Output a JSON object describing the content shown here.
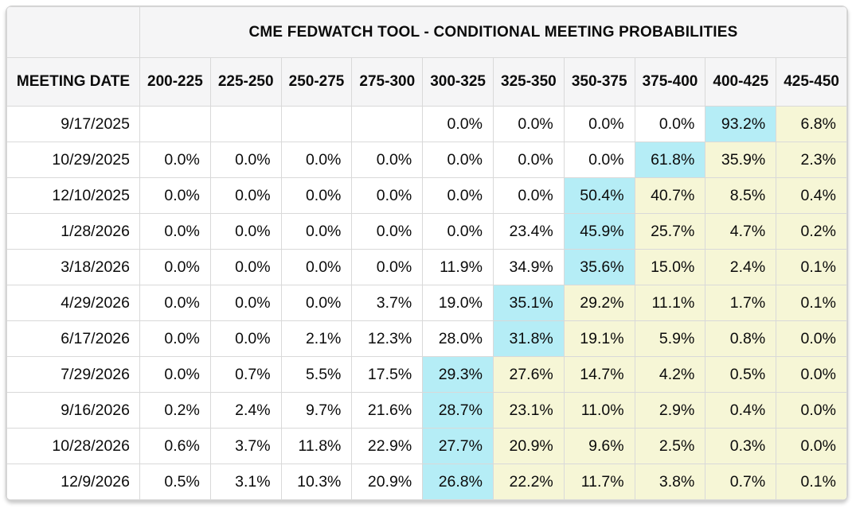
{
  "table": {
    "title": "CME FEDWATCH TOOL - CONDITIONAL MEETING PROBABILITIES",
    "date_column_header": "MEETING DATE",
    "rate_headers": [
      "200-225",
      "225-250",
      "250-275",
      "275-300",
      "300-325",
      "325-350",
      "350-375",
      "375-400",
      "400-425",
      "425-450"
    ],
    "rows": [
      {
        "date": "9/17/2025",
        "values": [
          "",
          "",
          "",
          "",
          "0.0%",
          "0.0%",
          "0.0%",
          "0.0%",
          "93.2%",
          "6.8%"
        ],
        "styles": [
          "w",
          "w",
          "w",
          "w",
          "w",
          "w",
          "w",
          "w",
          "c",
          "y"
        ]
      },
      {
        "date": "10/29/2025",
        "values": [
          "0.0%",
          "0.0%",
          "0.0%",
          "0.0%",
          "0.0%",
          "0.0%",
          "0.0%",
          "61.8%",
          "35.9%",
          "2.3%"
        ],
        "styles": [
          "w",
          "w",
          "w",
          "w",
          "w",
          "w",
          "w",
          "c",
          "y",
          "y"
        ]
      },
      {
        "date": "12/10/2025",
        "values": [
          "0.0%",
          "0.0%",
          "0.0%",
          "0.0%",
          "0.0%",
          "0.0%",
          "50.4%",
          "40.7%",
          "8.5%",
          "0.4%"
        ],
        "styles": [
          "w",
          "w",
          "w",
          "w",
          "w",
          "w",
          "c",
          "y",
          "y",
          "y"
        ]
      },
      {
        "date": "1/28/2026",
        "values": [
          "0.0%",
          "0.0%",
          "0.0%",
          "0.0%",
          "0.0%",
          "23.4%",
          "45.9%",
          "25.7%",
          "4.7%",
          "0.2%"
        ],
        "styles": [
          "w",
          "w",
          "w",
          "w",
          "w",
          "w",
          "c",
          "y",
          "y",
          "y"
        ]
      },
      {
        "date": "3/18/2026",
        "values": [
          "0.0%",
          "0.0%",
          "0.0%",
          "0.0%",
          "11.9%",
          "34.9%",
          "35.6%",
          "15.0%",
          "2.4%",
          "0.1%"
        ],
        "styles": [
          "w",
          "w",
          "w",
          "w",
          "w",
          "w",
          "c",
          "y",
          "y",
          "y"
        ]
      },
      {
        "date": "4/29/2026",
        "values": [
          "0.0%",
          "0.0%",
          "0.0%",
          "3.7%",
          "19.0%",
          "35.1%",
          "29.2%",
          "11.1%",
          "1.7%",
          "0.1%"
        ],
        "styles": [
          "w",
          "w",
          "w",
          "w",
          "w",
          "c",
          "y",
          "y",
          "y",
          "y"
        ]
      },
      {
        "date": "6/17/2026",
        "values": [
          "0.0%",
          "0.0%",
          "2.1%",
          "12.3%",
          "28.0%",
          "31.8%",
          "19.1%",
          "5.9%",
          "0.8%",
          "0.0%"
        ],
        "styles": [
          "w",
          "w",
          "w",
          "w",
          "w",
          "c",
          "y",
          "y",
          "y",
          "y"
        ]
      },
      {
        "date": "7/29/2026",
        "values": [
          "0.0%",
          "0.7%",
          "5.5%",
          "17.5%",
          "29.3%",
          "27.6%",
          "14.7%",
          "4.2%",
          "0.5%",
          "0.0%"
        ],
        "styles": [
          "w",
          "w",
          "w",
          "w",
          "c",
          "y",
          "y",
          "y",
          "y",
          "y"
        ]
      },
      {
        "date": "9/16/2026",
        "values": [
          "0.2%",
          "2.4%",
          "9.7%",
          "21.6%",
          "28.7%",
          "23.1%",
          "11.0%",
          "2.9%",
          "0.4%",
          "0.0%"
        ],
        "styles": [
          "w",
          "w",
          "w",
          "w",
          "c",
          "y",
          "y",
          "y",
          "y",
          "y"
        ]
      },
      {
        "date": "10/28/2026",
        "values": [
          "0.6%",
          "3.7%",
          "11.8%",
          "22.9%",
          "27.7%",
          "20.9%",
          "9.6%",
          "2.5%",
          "0.3%",
          "0.0%"
        ],
        "styles": [
          "w",
          "w",
          "w",
          "w",
          "c",
          "y",
          "y",
          "y",
          "y",
          "y"
        ]
      },
      {
        "date": "12/9/2026",
        "values": [
          "0.5%",
          "3.1%",
          "10.3%",
          "20.9%",
          "26.8%",
          "22.2%",
          "11.7%",
          "3.8%",
          "0.7%",
          "0.1%"
        ],
        "styles": [
          "w",
          "w",
          "w",
          "w",
          "c",
          "y",
          "y",
          "y",
          "y",
          "y"
        ]
      }
    ]
  },
  "colors": {
    "modal_highlight": "#b5edf6",
    "tail_highlight": "#f6f6d6",
    "header_background": "#f5f5f6",
    "grid_border": "#d9d9d9"
  }
}
